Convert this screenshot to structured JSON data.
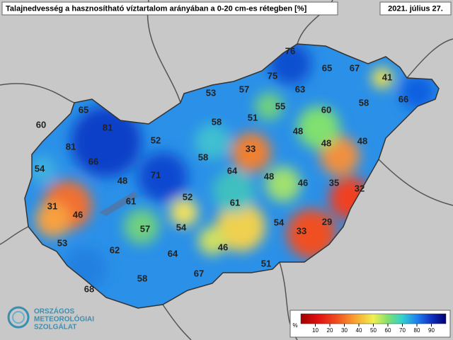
{
  "header": {
    "title": "Talajnedvesség a hasznosítható víztartalom arányában a 0-20 cm-es rétegben [%]",
    "date": "2021. július 27."
  },
  "station_values": [
    76,
    65,
    67,
    41,
    75,
    53,
    57,
    63,
    58,
    66,
    65,
    51,
    55,
    60,
    60,
    81,
    58,
    48,
    52,
    81,
    33,
    48,
    48,
    54,
    66,
    58,
    71,
    64,
    48,
    48,
    46,
    35,
    32,
    31,
    52,
    61,
    61,
    46,
    54,
    33,
    29,
    57,
    54,
    53,
    62,
    46,
    64,
    51,
    67,
    58,
    68
  ],
  "legend": {
    "unit": "%",
    "ticks": [
      10,
      20,
      30,
      40,
      50,
      60,
      70,
      80,
      90
    ]
  },
  "logo": {
    "lines": [
      "ORSZÁGOS",
      "METEOROLÓGIAI",
      "SZOLGÁLAT"
    ]
  }
}
